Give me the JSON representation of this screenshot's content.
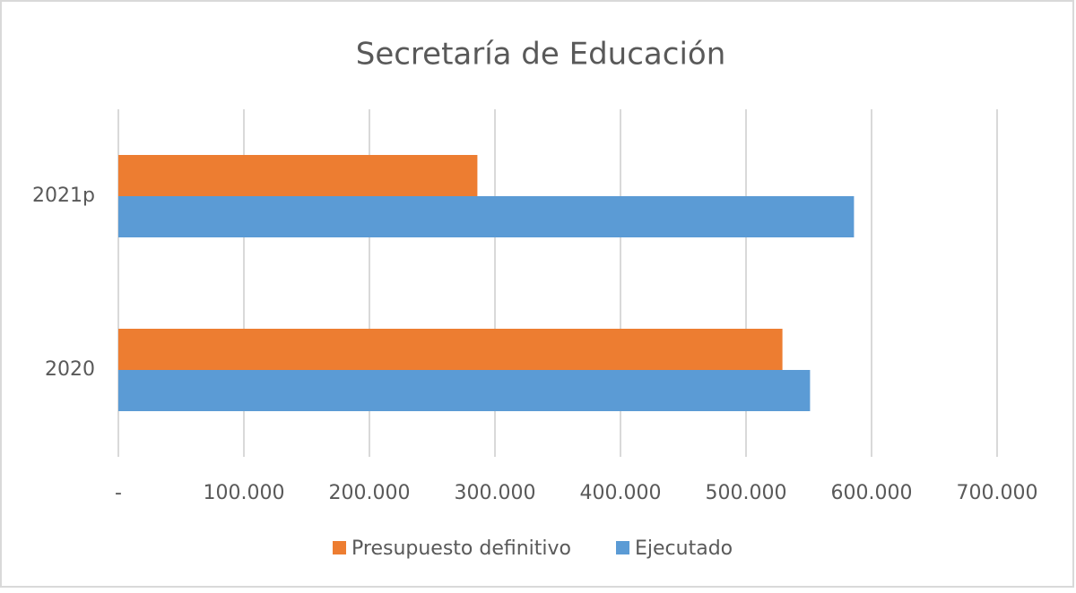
{
  "chart_data": {
    "type": "bar",
    "orientation": "horizontal",
    "title": "Secretaría de Educación",
    "categories": [
      "2020",
      "2021p"
    ],
    "series": [
      {
        "name": "Presupuesto definitivo",
        "color": "#ed7d31",
        "values": [
          529000,
          286000
        ]
      },
      {
        "name": "Ejecutado",
        "color": "#5b9bd5",
        "values": [
          551000,
          586000
        ]
      }
    ],
    "xlim": [
      0,
      700000
    ],
    "xticks": [
      {
        "value": 0,
        "label": "-"
      },
      {
        "value": 100000,
        "label": "100.000"
      },
      {
        "value": 200000,
        "label": "200.000"
      },
      {
        "value": 300000,
        "label": "300.000"
      },
      {
        "value": 400000,
        "label": "400.000"
      },
      {
        "value": 500000,
        "label": "500.000"
      },
      {
        "value": 600000,
        "label": "600.000"
      },
      {
        "value": 700000,
        "label": "700.000"
      }
    ],
    "grid": true,
    "legend": "bottom"
  }
}
